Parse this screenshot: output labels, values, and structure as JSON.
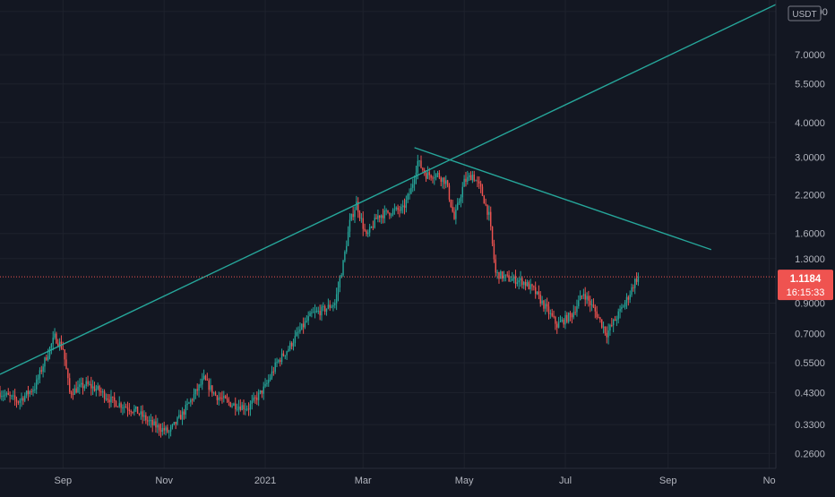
{
  "colors": {
    "background": "#131722",
    "grid": "#1e222d",
    "axis_text": "#b2b5be",
    "up": "#26a69a",
    "down": "#ef5350",
    "trendline": "#26a69a",
    "price_line": "#ef5350",
    "price_label_bg": "#ef5350"
  },
  "currency_badge": "USDT",
  "current_price": {
    "value": 1.1184,
    "label": "1.1184",
    "countdown": "16:15:33"
  },
  "chart_data": {
    "type": "candlestick",
    "y_scale": "log",
    "y_range": [
      0.23,
      11.0
    ],
    "x_range": [
      "2020-07-25",
      "2021-11-05"
    ],
    "grid": true,
    "y_ticks": [
      {
        "value": 10.0,
        "label": "10.0000"
      },
      {
        "value": 7.0,
        "label": "7.0000"
      },
      {
        "value": 5.5,
        "label": "5.5000"
      },
      {
        "value": 4.0,
        "label": "4.0000"
      },
      {
        "value": 3.0,
        "label": "3.0000"
      },
      {
        "value": 2.2,
        "label": "2.2000"
      },
      {
        "value": 1.6,
        "label": "1.6000"
      },
      {
        "value": 1.3,
        "label": "1.3000"
      },
      {
        "value": 0.9,
        "label": "0.9000"
      },
      {
        "value": 0.7,
        "label": "0.7000"
      },
      {
        "value": 0.55,
        "label": "0.5500"
      },
      {
        "value": 0.43,
        "label": "0.4300"
      },
      {
        "value": 0.33,
        "label": "0.3300"
      },
      {
        "value": 0.26,
        "label": "0.2600"
      }
    ],
    "x_ticks": [
      {
        "date": "2020-09-01",
        "label": "Sep"
      },
      {
        "date": "2020-11-01",
        "label": "Nov"
      },
      {
        "date": "2021-01-01",
        "label": "2021"
      },
      {
        "date": "2021-03-01",
        "label": "Mar"
      },
      {
        "date": "2021-05-01",
        "label": "May"
      },
      {
        "date": "2021-07-01",
        "label": "Jul"
      },
      {
        "date": "2021-09-01",
        "label": "Sep"
      },
      {
        "date": "2021-11-01",
        "label": "No"
      }
    ],
    "price_path": [
      [
        "2020-07-25",
        0.43
      ],
      [
        "2020-08-05",
        0.4
      ],
      [
        "2020-08-15",
        0.45
      ],
      [
        "2020-08-22",
        0.58
      ],
      [
        "2020-08-27",
        0.68
      ],
      [
        "2020-09-01",
        0.62
      ],
      [
        "2020-09-05",
        0.43
      ],
      [
        "2020-09-15",
        0.46
      ],
      [
        "2020-09-22",
        0.44
      ],
      [
        "2020-10-01",
        0.4
      ],
      [
        "2020-10-15",
        0.37
      ],
      [
        "2020-10-25",
        0.33
      ],
      [
        "2020-11-04",
        0.31
      ],
      [
        "2020-11-12",
        0.36
      ],
      [
        "2020-11-20",
        0.43
      ],
      [
        "2020-11-25",
        0.48
      ],
      [
        "2020-12-02",
        0.42
      ],
      [
        "2020-12-12",
        0.39
      ],
      [
        "2020-12-22",
        0.38
      ],
      [
        "2021-01-01",
        0.45
      ],
      [
        "2021-01-08",
        0.55
      ],
      [
        "2021-01-15",
        0.62
      ],
      [
        "2021-01-22",
        0.72
      ],
      [
        "2021-01-29",
        0.82
      ],
      [
        "2021-02-05",
        0.85
      ],
      [
        "2021-02-12",
        0.9
      ],
      [
        "2021-02-17",
        1.25
      ],
      [
        "2021-02-21",
        1.75
      ],
      [
        "2021-02-25",
        2.05
      ],
      [
        "2021-03-03",
        1.55
      ],
      [
        "2021-03-10",
        1.85
      ],
      [
        "2021-03-18",
        1.92
      ],
      [
        "2021-03-25",
        1.95
      ],
      [
        "2021-03-30",
        2.3
      ],
      [
        "2021-04-03",
        2.9
      ],
      [
        "2021-04-08",
        2.6
      ],
      [
        "2021-04-15",
        2.6
      ],
      [
        "2021-04-20",
        2.45
      ],
      [
        "2021-04-25",
        1.8
      ],
      [
        "2021-05-01",
        2.45
      ],
      [
        "2021-05-06",
        2.6
      ],
      [
        "2021-05-11",
        2.3
      ],
      [
        "2021-05-16",
        1.85
      ],
      [
        "2021-05-20",
        1.15
      ],
      [
        "2021-05-28",
        1.1
      ],
      [
        "2021-06-05",
        1.08
      ],
      [
        "2021-06-12",
        1.0
      ],
      [
        "2021-06-20",
        0.85
      ],
      [
        "2021-06-26",
        0.75
      ],
      [
        "2021-07-05",
        0.82
      ],
      [
        "2021-07-12",
        0.98
      ],
      [
        "2021-07-20",
        0.82
      ],
      [
        "2021-07-26",
        0.7
      ],
      [
        "2021-08-02",
        0.82
      ],
      [
        "2021-08-08",
        0.95
      ],
      [
        "2021-08-12",
        1.08
      ],
      [
        "2021-08-14",
        1.1184
      ]
    ],
    "trendlines": [
      {
        "name": "rising-trendline",
        "from": [
          "2020-07-25",
          0.5
        ],
        "to": [
          "2021-11-05",
          10.6
        ]
      },
      {
        "name": "falling-trendline",
        "from": [
          "2021-04-01",
          3.25
        ],
        "to": [
          "2021-09-27",
          1.4
        ]
      }
    ],
    "last_price": 1.1184
  }
}
